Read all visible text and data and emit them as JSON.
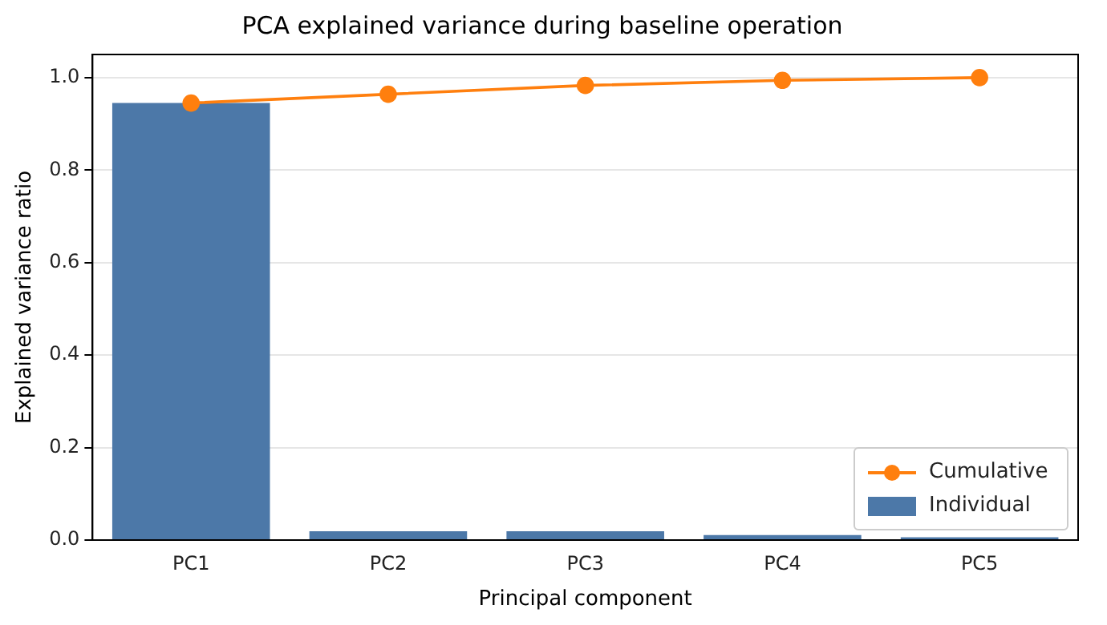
{
  "chart_data": {
    "type": "bar",
    "title": "PCA explained variance during baseline operation",
    "xlabel": "Principal component",
    "ylabel": "Explained variance ratio",
    "categories": [
      "PC1",
      "PC2",
      "PC3",
      "PC4",
      "PC5"
    ],
    "series": [
      {
        "name": "Cumulative",
        "type": "line",
        "color": "#ff7f0e",
        "values": [
          0.945,
          0.964,
          0.983,
          0.994,
          1.0
        ]
      },
      {
        "name": "Individual",
        "color": "#4c78a8",
        "values": [
          0.945,
          0.019,
          0.019,
          0.011,
          0.006
        ]
      }
    ],
    "ylim": [
      0,
      1.05
    ],
    "yticks": [
      {
        "value": 0,
        "label": "0.0"
      },
      0.2,
      0.4,
      0.6,
      0.8,
      {
        "value": 1,
        "label": "1.0"
      }
    ],
    "grid": "y",
    "legend": "bottom right",
    "marker": "circle"
  }
}
